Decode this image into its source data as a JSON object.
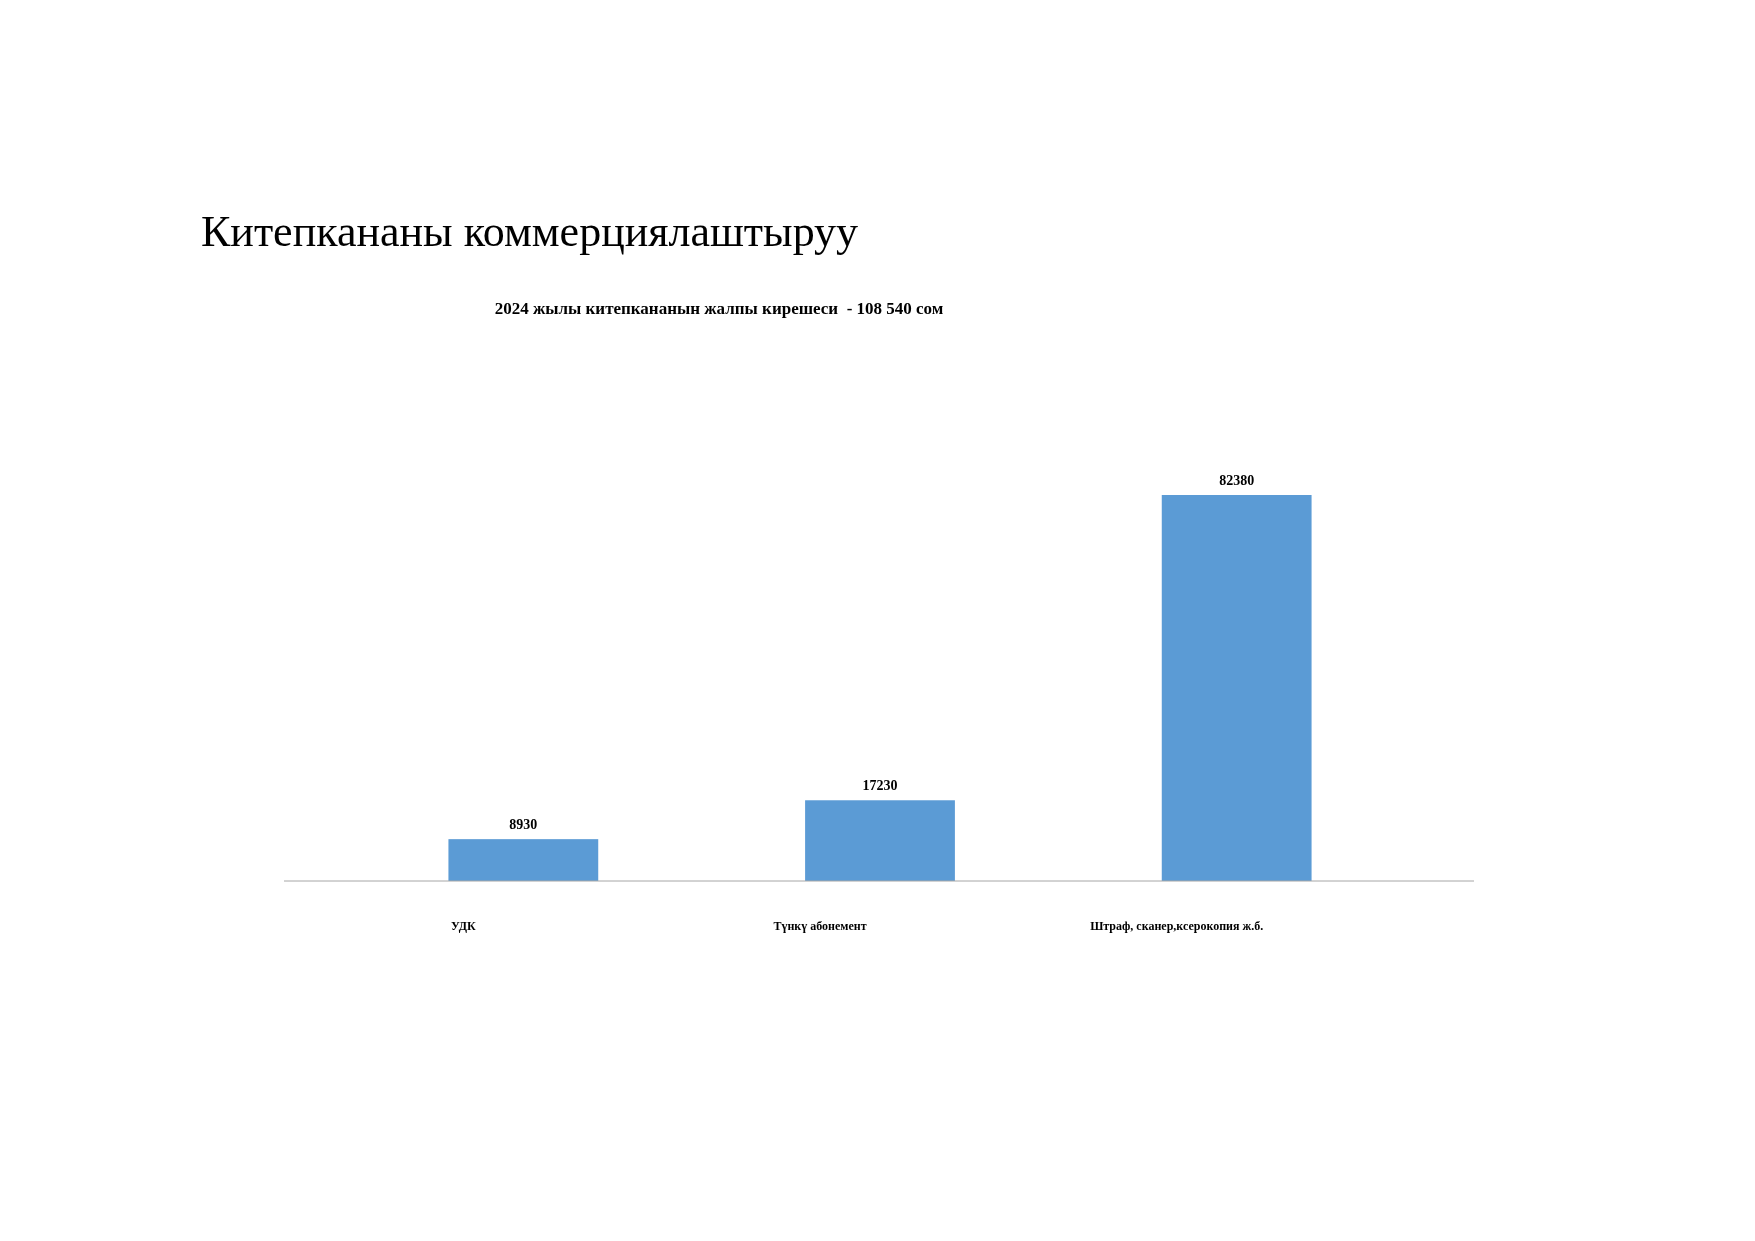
{
  "chart_data": {
    "type": "bar",
    "title": "Китепкананы коммерциялаштыруу",
    "subtitle": "2024 жылы китепкананын жалпы кирешеси  - 108 540 сом",
    "categories": [
      "УДК",
      "Түнкү абонемент",
      "Штраф, сканер,ксерокопия ж.б."
    ],
    "values": [
      8930,
      17230,
      82380
    ],
    "color": "#5b9bd5",
    "data_labels": true
  }
}
